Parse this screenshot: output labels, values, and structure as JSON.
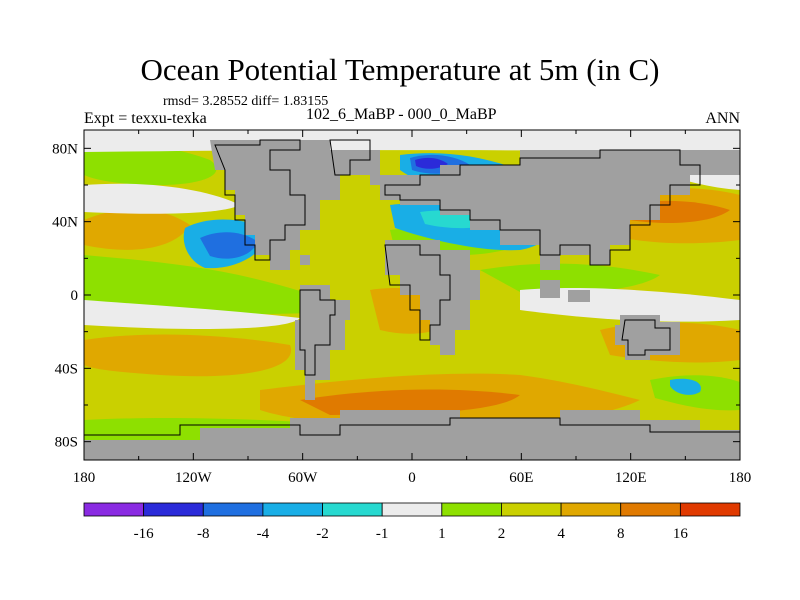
{
  "title": "Ocean Potential Temperature at 5m (in C)",
  "stats_line": "rmsd= 3.28552 diff= 1.83155",
  "experiment_label": "Expt = texxu-texka",
  "difference_label": "102_6_MaBP - 000_0_MaBP",
  "season_label": "ANN",
  "map": {
    "lon_range": [
      -180,
      180
    ],
    "lat_range": [
      -90,
      90
    ],
    "land_color": "#a0a0a0",
    "x_ticks": [
      "180",
      "120W",
      "60W",
      "0",
      "60E",
      "120E",
      "180"
    ],
    "y_ticks": [
      "80N",
      "40N",
      "0",
      "40S",
      "80S"
    ]
  },
  "colorbar": {
    "colors": [
      "#8a2be2",
      "#2b2bd9",
      "#1f6fe0",
      "#19aee6",
      "#27d9d0",
      "#ececec",
      "#8ee000",
      "#cad000",
      "#e0a800",
      "#e07a00",
      "#e03a00"
    ],
    "labels": [
      "-16",
      "-8",
      "-4",
      "-2",
      "-1",
      "1",
      "2",
      "4",
      "8",
      "16"
    ]
  }
}
